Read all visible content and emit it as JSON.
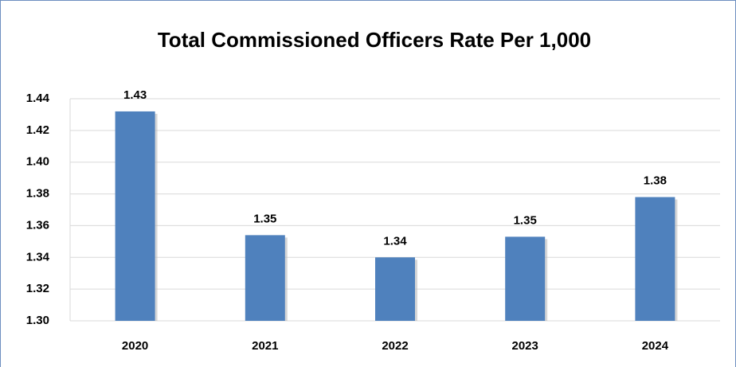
{
  "chart_data": {
    "type": "bar",
    "title": "Total Commissioned Officers Rate Per 1,000",
    "categories": [
      "2020",
      "2021",
      "2022",
      "2023",
      "2024"
    ],
    "values": [
      1.432,
      1.354,
      1.34,
      1.353,
      1.378
    ],
    "value_labels": [
      "1.43",
      "1.35",
      "1.34",
      "1.35",
      "1.38"
    ],
    "color": "#4f81bd",
    "ylim": [
      1.3,
      1.44
    ],
    "yticks": [
      {
        "value": 1.3,
        "label": "1.30"
      },
      {
        "value": 1.32,
        "label": "1.32"
      },
      {
        "value": 1.34,
        "label": "1.34"
      },
      {
        "value": 1.36,
        "label": "1.36"
      },
      {
        "value": 1.38,
        "label": "1.38"
      },
      {
        "value": 1.4,
        "label": "1.40"
      },
      {
        "value": 1.42,
        "label": "1.42"
      },
      {
        "value": 1.44,
        "label": "1.44"
      }
    ],
    "grid": true
  }
}
